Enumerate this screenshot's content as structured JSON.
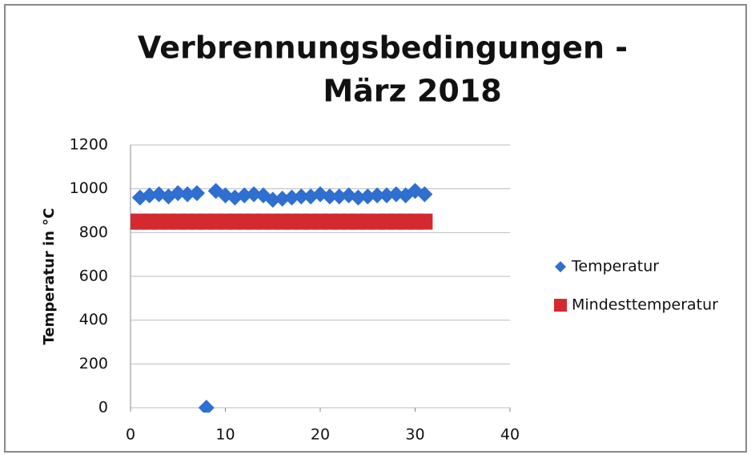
{
  "chart_data": {
    "type": "scatter",
    "title": [
      "Verbrennungsbedingungen -",
      "März 2018"
    ],
    "ylabel": "Temperatur in °C",
    "xlim": [
      0,
      40
    ],
    "xticks": [
      0,
      10,
      20,
      30,
      40
    ],
    "ylim": [
      0,
      1200
    ],
    "yticks": [
      0,
      200,
      400,
      600,
      800,
      1000,
      1200
    ],
    "grid": true,
    "legend": "right",
    "series": [
      {
        "name": "Temperatur",
        "color": "#2e6fd0",
        "marker": "diamond",
        "x": [
          1,
          2,
          3,
          4,
          5,
          6,
          7,
          8,
          9,
          10,
          11,
          12,
          13,
          14,
          15,
          16,
          17,
          18,
          19,
          20,
          21,
          22,
          23,
          24,
          25,
          26,
          27,
          28,
          29,
          30,
          31
        ],
        "values": [
          960,
          970,
          975,
          965,
          980,
          975,
          980,
          0,
          990,
          970,
          960,
          970,
          975,
          970,
          950,
          955,
          960,
          965,
          965,
          975,
          965,
          965,
          970,
          960,
          965,
          970,
          970,
          975,
          970,
          990,
          975
        ]
      },
      {
        "name": "Mindesttemperatur",
        "color": "#d42a2f",
        "marker": "square",
        "x": [
          0,
          1,
          2,
          3,
          4,
          5,
          6,
          7,
          8,
          9,
          10,
          11,
          12,
          13,
          14,
          15,
          16,
          17,
          18,
          19,
          20,
          21,
          22,
          23,
          24,
          25,
          26,
          27,
          28,
          29,
          30,
          31
        ],
        "values": [
          850,
          850,
          850,
          850,
          850,
          850,
          850,
          850,
          850,
          850,
          850,
          850,
          850,
          850,
          850,
          850,
          850,
          850,
          850,
          850,
          850,
          850,
          850,
          850,
          850,
          850,
          850,
          850,
          850,
          850,
          850,
          850
        ]
      }
    ]
  }
}
